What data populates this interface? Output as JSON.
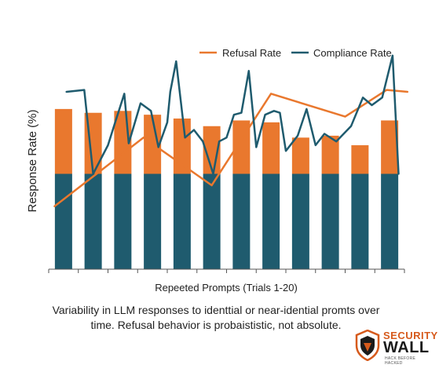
{
  "chart_data": {
    "type": "bar",
    "xlabel": "Repeeted Prompts (Trials 1-20)",
    "ylabel": "Response  Rate (%)",
    "ylim": [
      0,
      100
    ],
    "grid": false,
    "legend_position": "top-right",
    "bar_count": 12,
    "series": [
      {
        "name": "Compliance Rate",
        "kind": "bar",
        "values": [
          50,
          50,
          50,
          50,
          50,
          50,
          50,
          50,
          50,
          50,
          50,
          50
        ]
      },
      {
        "name": "Refusal Rate",
        "kind": "bar",
        "values": [
          34,
          32,
          33,
          31,
          29,
          25,
          28,
          27,
          19,
          20,
          15,
          28
        ]
      },
      {
        "name": "Refusal Rate",
        "kind": "line",
        "points": [
          [
            0.2,
            33
          ],
          [
            3.2,
            69
          ],
          [
            5.5,
            44
          ],
          [
            7.5,
            92
          ],
          [
            10,
            80
          ],
          [
            11.4,
            94
          ],
          [
            12.1,
            93
          ]
        ]
      },
      {
        "name": "Compliance Rate",
        "kind": "line",
        "points": [
          [
            0.6,
            93
          ],
          [
            1.2,
            94
          ],
          [
            1.5,
            50
          ],
          [
            2.0,
            65
          ],
          [
            2.2,
            75
          ],
          [
            2.55,
            92
          ],
          [
            2.7,
            66
          ],
          [
            3.1,
            87
          ],
          [
            3.45,
            83
          ],
          [
            3.7,
            64
          ],
          [
            4.0,
            77
          ],
          [
            4.1,
            93
          ],
          [
            4.3,
            109
          ],
          [
            4.6,
            69
          ],
          [
            4.9,
            73
          ],
          [
            5.2,
            67
          ],
          [
            5.55,
            50
          ],
          [
            5.75,
            67
          ],
          [
            6.0,
            69
          ],
          [
            6.25,
            81
          ],
          [
            6.5,
            82
          ],
          [
            6.75,
            104
          ],
          [
            7.0,
            64
          ],
          [
            7.3,
            81
          ],
          [
            7.6,
            83
          ],
          [
            7.8,
            82
          ],
          [
            8.0,
            62
          ],
          [
            8.4,
            70
          ],
          [
            8.7,
            84
          ],
          [
            9.0,
            65
          ],
          [
            9.3,
            71
          ],
          [
            9.7,
            67
          ],
          [
            10.2,
            75
          ],
          [
            10.6,
            90
          ],
          [
            10.9,
            86
          ],
          [
            11.25,
            90
          ],
          [
            11.6,
            112
          ],
          [
            11.8,
            50
          ]
        ]
      }
    ]
  },
  "caption": {
    "line1": "Variability in LLM responses to identtial or near-idential promts over",
    "line2": "time. Refusal behavior is probaististic, not absolute."
  },
  "logo": {
    "line1": "SECURITY",
    "line2": "WALL",
    "line3": "HACK BEFORE HACKED"
  },
  "colors": {
    "refusal": "#E9782E",
    "compliance": "#1F5B6E",
    "axis": "#555555",
    "text": "#222222"
  }
}
